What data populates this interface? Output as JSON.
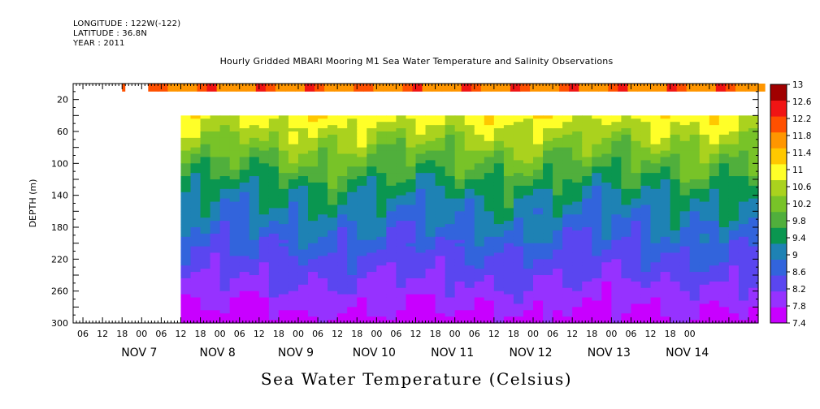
{
  "header": {
    "longitude": "LONGITUDE : 122W(-122)",
    "latitude": "LATITUDE : 36.8N",
    "year": "YEAR : 2011"
  },
  "title": "Hourly Gridded MBARI Mooring M1 Sea Water Temperature and Salinity Observations",
  "bottom_title": "Sea Water Temperature (Celsius)",
  "chart_data": {
    "type": "heatmap",
    "title": "Hourly Gridded MBARI Mooring M1 Sea Water Temperature and Salinity Observations",
    "colorbar_title": "Sea Water Temperature (Celsius)",
    "ylabel": "DEPTH (m)",
    "xlabel": "",
    "xlim_hours": [
      -21,
      189
    ],
    "ylim": [
      300,
      0
    ],
    "y_axis_inverted": true,
    "y_ticks": [
      20,
      60,
      100,
      140,
      180,
      220,
      260,
      300
    ],
    "x_hour_ticks": [
      "06",
      "12",
      "18",
      "00",
      "06",
      "12",
      "18",
      "00",
      "06",
      "12",
      "18",
      "00",
      "06",
      "12",
      "18",
      "00",
      "06",
      "12",
      "18",
      "00",
      "06",
      "12",
      "18",
      "00",
      "06",
      "12",
      "18",
      "00",
      "06",
      "12",
      "18",
      "00"
    ],
    "x_day_labels": [
      "NOV  7",
      "NOV  8",
      "NOV  9",
      "NOV 10",
      "NOV 11",
      "NOV 12",
      "NOV 13",
      "NOV 14"
    ],
    "colorbar_levels": [
      7.4,
      7.8,
      8.2,
      8.6,
      9,
      9.4,
      9.8,
      10.2,
      10.6,
      11,
      11.4,
      11.8,
      12.2,
      12.6,
      13
    ],
    "colorbar_labels": [
      "7.4",
      "7.8",
      "8.2",
      "8.6",
      "9",
      "9.4",
      "9.8",
      "10.2",
      "10.6",
      "11",
      "11.4",
      "11.8",
      "12.2",
      "12.6",
      "13"
    ],
    "colorbar_colors": [
      "#c800ff",
      "#9632ff",
      "#5a46f0",
      "#3264dc",
      "#1e82b4",
      "#0a9650",
      "#50af3c",
      "#78c328",
      "#aad21e",
      "#ffff28",
      "#ffc800",
      "#ff9600",
      "#ff5000",
      "#f01414",
      "#a00000"
    ],
    "surface_temperature_approx": 12.5,
    "mid_depth_temperature_at_140m_approx": 9.4,
    "bottom_temperature_at_300m_approx": 7.6,
    "data_start_hour_deep_levels": 12,
    "data_start_hour_surface": 2
  }
}
